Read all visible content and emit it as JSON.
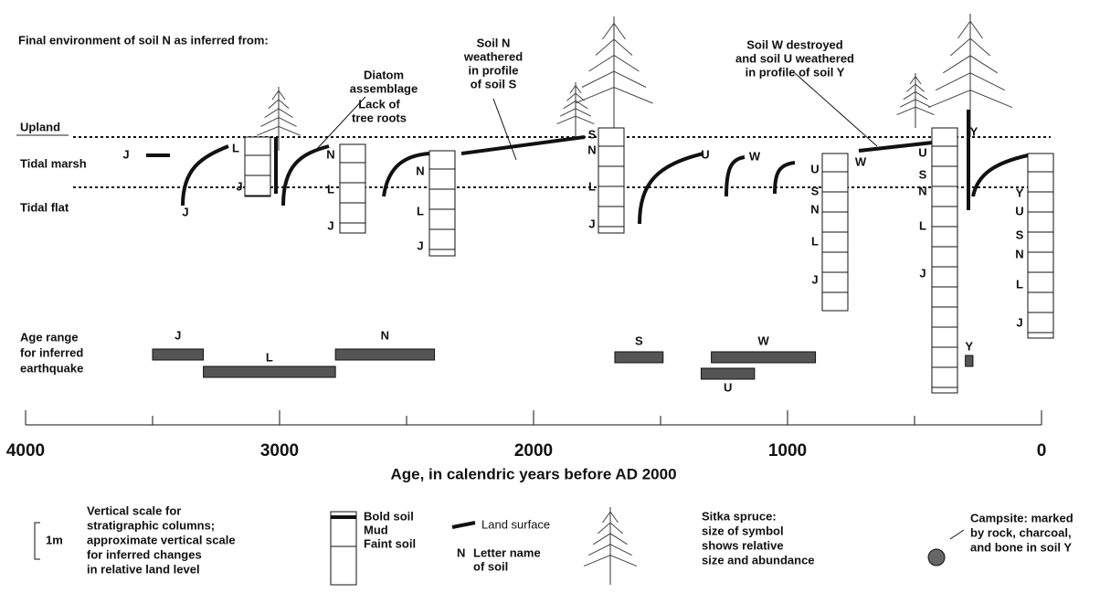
{
  "title": "Final environment of soil N as inferred from:",
  "levels": [
    "Upland",
    "Tidal marsh",
    "Tidal flat"
  ],
  "annotations": {
    "diatom": [
      "Diatom",
      "assemblage"
    ],
    "roots": [
      "Lack of",
      "tree roots"
    ],
    "soil_n": [
      "Soil N",
      "weathered",
      "in profile",
      "of soil S"
    ],
    "soil_w": [
      "Soil W destroyed",
      "and soil U weathered",
      "in profile of soil Y"
    ]
  },
  "soil_labels": [
    "J",
    "J",
    "L",
    "J",
    "N",
    "L",
    "J",
    "N",
    "L",
    "J",
    "S",
    "N",
    "L",
    "J",
    "U",
    "W",
    "U",
    "S",
    "N",
    "L",
    "J",
    "W",
    "Y",
    "U",
    "S",
    "N",
    "L",
    "J",
    "Y",
    "U",
    "S",
    "N",
    "L",
    "J"
  ],
  "age_range_label": [
    "Age range",
    "for inferred",
    "earthquake"
  ],
  "age_ranges": [
    {
      "soil": "J",
      "from": 3500,
      "to": 3300
    },
    {
      "soil": "L",
      "from": 3300,
      "to": 2780
    },
    {
      "soil": "N",
      "from": 2780,
      "to": 2390
    },
    {
      "soil": "S",
      "from": 1680,
      "to": 1490
    },
    {
      "soil": "W",
      "from": 1300,
      "to": 890
    },
    {
      "soil": "U",
      "from": 1340,
      "to": 1130
    },
    {
      "soil": "Y",
      "from": 300,
      "to": 270
    }
  ],
  "axis": {
    "label": "Age, in calendric years before AD 2000",
    "lim": [
      4000,
      0
    ],
    "ticks": [
      4000,
      3000,
      2000,
      1000,
      0
    ],
    "minor_ticks": [
      3500,
      2500,
      1500,
      500
    ]
  },
  "legend": {
    "scale_label": "1m",
    "scale_text": [
      "Vertical scale for",
      "stratigraphic columns;",
      "approximate vertical scale",
      "for inferred changes",
      "in relative land level"
    ],
    "column_text": [
      "Bold soil",
      "Mud",
      "Faint soil"
    ],
    "land_surface": "Land surface",
    "letter_symbol": "N",
    "letter_text": [
      "Letter name",
      "of soil"
    ],
    "spruce_text": [
      "Sitka spruce:",
      "size of symbol",
      "shows relative",
      "size and abundance"
    ],
    "campsite_text": [
      "Campsite: marked",
      "by rock, charcoal,",
      "and bone in soil Y"
    ]
  }
}
